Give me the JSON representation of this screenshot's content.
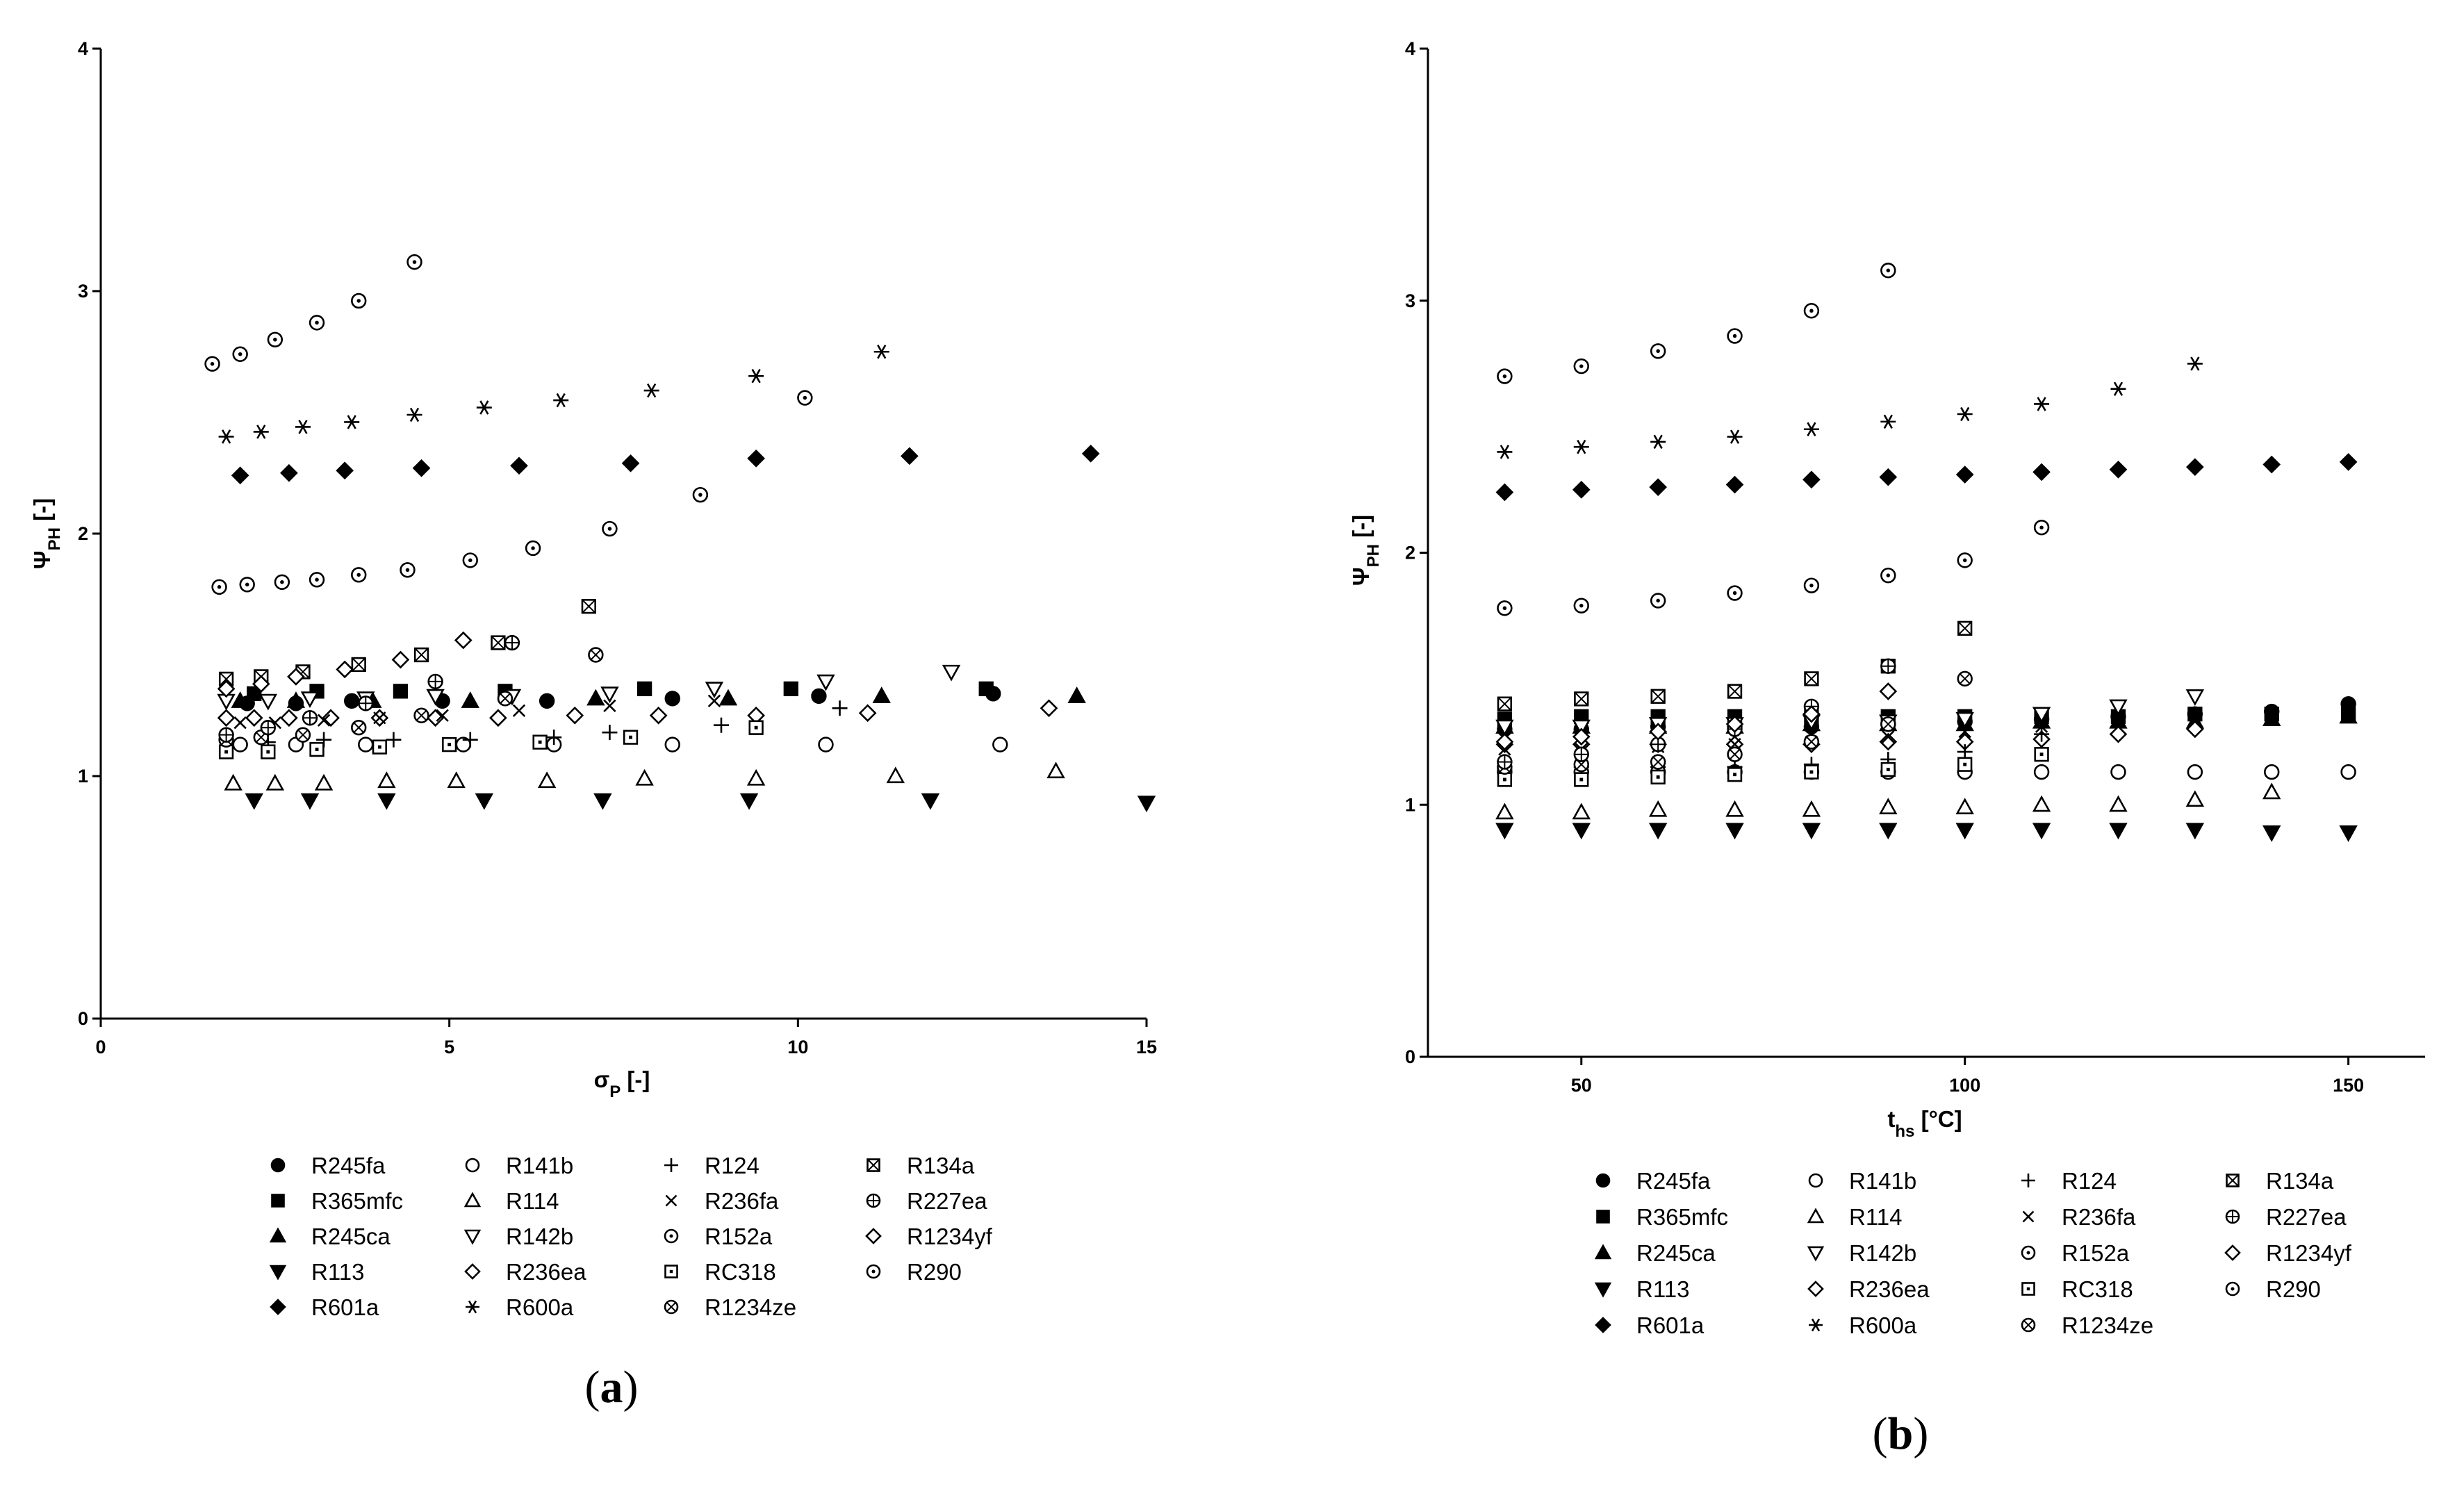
{
  "chart_data": [
    {
      "type": "scatter",
      "panel_label": "(a)",
      "xlabel": "σ_P [-]",
      "ylabel": "Ψ_PH [-]",
      "xlim": [
        0,
        15
      ],
      "ylim": [
        0,
        4
      ],
      "xticks": [
        0,
        5,
        10,
        15
      ],
      "yticks": [
        0,
        1,
        2,
        3,
        4
      ],
      "legend": "below",
      "series": [
        {
          "name": "R245fa",
          "marker": "circle-filled",
          "x": [
            2.1,
            2.8,
            3.6,
            4.9,
            6.4,
            8.2,
            10.3,
            12.8
          ],
          "y": [
            1.3,
            1.3,
            1.31,
            1.31,
            1.31,
            1.32,
            1.33,
            1.34
          ]
        },
        {
          "name": "R365mfc",
          "marker": "square-filled",
          "x": [
            2.2,
            3.1,
            4.3,
            5.8,
            7.8,
            9.9,
            12.7
          ],
          "y": [
            1.34,
            1.35,
            1.35,
            1.35,
            1.36,
            1.36,
            1.36
          ]
        },
        {
          "name": "R245ca",
          "marker": "triangle-filled",
          "x": [
            2.0,
            2.8,
            3.9,
            5.3,
            7.1,
            9.0,
            11.2,
            14.0
          ],
          "y": [
            1.31,
            1.31,
            1.31,
            1.31,
            1.32,
            1.32,
            1.33,
            1.33
          ]
        },
        {
          "name": "R113",
          "marker": "triangle-down-filled",
          "x": [
            2.2,
            3,
            4.1,
            5.5,
            7.2,
            9.3,
            11.9,
            15.0
          ],
          "y": [
            0.9,
            0.9,
            0.9,
            0.9,
            0.9,
            0.9,
            0.9,
            0.89
          ]
        },
        {
          "name": "R601a",
          "marker": "diamond-filled",
          "x": [
            2.0,
            2.7,
            3.5,
            4.6,
            6.0,
            7.6,
            9.4,
            11.6,
            14.2
          ],
          "y": [
            2.24,
            2.25,
            2.26,
            2.27,
            2.28,
            2.29,
            2.31,
            2.32,
            2.33
          ]
        },
        {
          "name": "R141b",
          "marker": "circle-open",
          "x": [
            2.0,
            2.8,
            3.8,
            5.2,
            6.5,
            8.2,
            10.4,
            12.9
          ],
          "y": [
            1.13,
            1.13,
            1.13,
            1.13,
            1.13,
            1.13,
            1.13,
            1.13
          ]
        },
        {
          "name": "R114",
          "marker": "triangle-open",
          "x": [
            1.9,
            2.5,
            3.2,
            4.1,
            5.1,
            6.4,
            7.8,
            9.4,
            11.4,
            13.7
          ],
          "y": [
            0.97,
            0.97,
            0.97,
            0.98,
            0.98,
            0.98,
            0.99,
            0.99,
            1.0,
            1.02
          ]
        },
        {
          "name": "R142b",
          "marker": "triangle-down-open",
          "x": [
            1.8,
            2.4,
            3.0,
            3.8,
            4.8,
            5.9,
            7.3,
            8.8,
            10.4,
            12.2
          ],
          "y": [
            1.31,
            1.31,
            1.32,
            1.32,
            1.33,
            1.33,
            1.34,
            1.36,
            1.39,
            1.43
          ]
        },
        {
          "name": "R236ea",
          "marker": "diamond-open",
          "x": [
            1.8,
            2.2,
            2.7,
            3.3,
            4.0,
            4.8,
            5.7,
            6.8,
            8.0,
            9.4,
            11.0,
            13.6
          ],
          "y": [
            1.24,
            1.24,
            1.24,
            1.24,
            1.24,
            1.24,
            1.24,
            1.25,
            1.25,
            1.25,
            1.26,
            1.28
          ]
        },
        {
          "name": "R600a",
          "marker": "asterisk",
          "x": [
            1.8,
            2.3,
            2.9,
            3.6,
            4.5,
            5.5,
            6.6,
            7.9,
            9.4,
            11.2
          ],
          "y": [
            2.4,
            2.42,
            2.44,
            2.46,
            2.49,
            2.52,
            2.55,
            2.59,
            2.65,
            2.75
          ]
        },
        {
          "name": "R124",
          "marker": "plus",
          "x": [
            2.4,
            3.2,
            4.2,
            5.3,
            6.5,
            7.3,
            8.9,
            10.6
          ],
          "y": [
            1.14,
            1.15,
            1.15,
            1.15,
            1.16,
            1.18,
            1.21,
            1.28
          ]
        },
        {
          "name": "R236fa",
          "marker": "cross",
          "x": [
            2.0,
            2.5,
            3.2,
            4.0,
            4.9,
            6.0,
            7.3,
            8.8
          ],
          "y": [
            1.22,
            1.22,
            1.23,
            1.24,
            1.25,
            1.27,
            1.29,
            1.31
          ]
        },
        {
          "name": "R152a",
          "marker": "circle-dot",
          "x": [
            1.7,
            2.1,
            2.6,
            3.1,
            3.7,
            4.4,
            5.3,
            6.2,
            7.3,
            8.6,
            10.1
          ],
          "y": [
            1.78,
            1.79,
            1.8,
            1.81,
            1.83,
            1.85,
            1.89,
            1.94,
            2.02,
            2.16,
            2.56
          ]
        },
        {
          "name": "RC318",
          "marker": "square-dot",
          "x": [
            1.8,
            2.4,
            3.1,
            4.0,
            5.0,
            6.3,
            7.6,
            9.4
          ],
          "y": [
            1.1,
            1.1,
            1.11,
            1.12,
            1.13,
            1.14,
            1.16,
            1.2
          ]
        },
        {
          "name": "R1234ze",
          "marker": "circle-x",
          "x": [
            1.8,
            2.3,
            2.9,
            3.7,
            4.6,
            5.8,
            7.1
          ],
          "y": [
            1.15,
            1.16,
            1.17,
            1.2,
            1.25,
            1.32,
            1.5
          ]
        },
        {
          "name": "R134a",
          "marker": "square-x",
          "x": [
            1.8,
            2.3,
            2.9,
            3.7,
            4.6,
            5.7,
            7.0
          ],
          "y": [
            1.4,
            1.41,
            1.43,
            1.46,
            1.5,
            1.55,
            1.7
          ]
        },
        {
          "name": "R227ea",
          "marker": "circle-plus",
          "x": [
            1.8,
            2.4,
            3.0,
            3.8,
            4.8,
            5.9
          ],
          "y": [
            1.17,
            1.2,
            1.24,
            1.3,
            1.39,
            1.55
          ]
        },
        {
          "name": "R1234yf",
          "marker": "diamond-open",
          "x": [
            1.8,
            2.3,
            2.8,
            3.5,
            4.3,
            5.2
          ],
          "y": [
            1.36,
            1.38,
            1.41,
            1.44,
            1.48,
            1.56
          ]
        },
        {
          "name": "R290",
          "marker": "circle-dot",
          "x": [
            1.6,
            2.0,
            2.5,
            3.1,
            3.7,
            4.5
          ],
          "y": [
            2.7,
            2.74,
            2.8,
            2.87,
            2.96,
            3.12
          ]
        }
      ]
    },
    {
      "type": "scatter",
      "panel_label": "(b)",
      "xlabel": "t_hs [°C]",
      "ylabel": "Ψ_PH [-]",
      "xlim": [
        30,
        160
      ],
      "ylim": [
        0,
        4
      ],
      "xticks": [
        50,
        100,
        150
      ],
      "yticks": [
        0,
        1,
        2,
        3,
        4
      ],
      "legend": "below",
      "series": [
        {
          "name": "R245fa",
          "marker": "circle-filled",
          "x": [
            40,
            50,
            60,
            70,
            80,
            90,
            100,
            110,
            120,
            130,
            140,
            150
          ],
          "y": [
            1.3,
            1.3,
            1.31,
            1.31,
            1.31,
            1.32,
            1.33,
            1.34,
            1.35,
            1.36,
            1.37,
            1.4
          ]
        },
        {
          "name": "R365mfc",
          "marker": "square-filled",
          "x": [
            40,
            50,
            60,
            70,
            80,
            90,
            100,
            110,
            120,
            130,
            140,
            150
          ],
          "y": [
            1.34,
            1.35,
            1.35,
            1.35,
            1.35,
            1.35,
            1.35,
            1.35,
            1.35,
            1.36,
            1.36,
            1.36
          ]
        },
        {
          "name": "R245ca",
          "marker": "triangle-filled",
          "x": [
            40,
            50,
            60,
            70,
            80,
            90,
            100,
            110,
            120,
            130,
            140,
            150
          ],
          "y": [
            1.31,
            1.31,
            1.31,
            1.31,
            1.32,
            1.32,
            1.32,
            1.33,
            1.33,
            1.33,
            1.34,
            1.35
          ]
        },
        {
          "name": "R113",
          "marker": "triangle-down-filled",
          "x": [
            40,
            50,
            60,
            70,
            80,
            90,
            100,
            110,
            120,
            130,
            140,
            150
          ],
          "y": [
            0.9,
            0.9,
            0.9,
            0.9,
            0.9,
            0.9,
            0.9,
            0.9,
            0.9,
            0.9,
            0.89,
            0.89
          ]
        },
        {
          "name": "R601a",
          "marker": "diamond-filled",
          "x": [
            40,
            50,
            60,
            70,
            80,
            90,
            100,
            110,
            120,
            130,
            140,
            150
          ],
          "y": [
            2.24,
            2.25,
            2.26,
            2.27,
            2.29,
            2.3,
            2.31,
            2.32,
            2.33,
            2.34,
            2.35,
            2.36
          ]
        },
        {
          "name": "R141b",
          "marker": "circle-open",
          "x": [
            40,
            50,
            60,
            70,
            80,
            90,
            100,
            110,
            120,
            130,
            140,
            150
          ],
          "y": [
            1.13,
            1.13,
            1.13,
            1.13,
            1.13,
            1.13,
            1.13,
            1.13,
            1.13,
            1.13,
            1.13,
            1.13
          ]
        },
        {
          "name": "R114",
          "marker": "triangle-open",
          "x": [
            40,
            50,
            60,
            70,
            80,
            90,
            100,
            110,
            120,
            130,
            140
          ],
          "y": [
            0.97,
            0.97,
            0.98,
            0.98,
            0.98,
            0.99,
            0.99,
            1.0,
            1.0,
            1.02,
            1.05
          ]
        },
        {
          "name": "R142b",
          "marker": "triangle-down-open",
          "x": [
            40,
            50,
            60,
            70,
            80,
            90,
            100,
            110,
            120,
            130
          ],
          "y": [
            1.31,
            1.31,
            1.32,
            1.32,
            1.33,
            1.33,
            1.34,
            1.36,
            1.39,
            1.43
          ]
        },
        {
          "name": "R236ea",
          "marker": "diamond-open",
          "x": [
            40,
            50,
            60,
            70,
            80,
            90,
            100,
            110,
            120,
            130
          ],
          "y": [
            1.24,
            1.24,
            1.24,
            1.24,
            1.24,
            1.25,
            1.25,
            1.26,
            1.28,
            1.3
          ]
        },
        {
          "name": "R600a",
          "marker": "asterisk",
          "x": [
            40,
            50,
            60,
            70,
            80,
            90,
            100,
            110,
            120,
            130
          ],
          "y": [
            2.4,
            2.42,
            2.44,
            2.46,
            2.49,
            2.52,
            2.55,
            2.59,
            2.65,
            2.75
          ]
        },
        {
          "name": "R124",
          "marker": "plus",
          "x": [
            40,
            50,
            60,
            70,
            80,
            90,
            100,
            110
          ],
          "y": [
            1.14,
            1.15,
            1.15,
            1.15,
            1.16,
            1.18,
            1.21,
            1.28
          ]
        },
        {
          "name": "R236fa",
          "marker": "cross",
          "x": [
            40,
            50,
            60,
            70,
            80,
            90,
            100,
            110
          ],
          "y": [
            1.22,
            1.22,
            1.23,
            1.24,
            1.25,
            1.27,
            1.29,
            1.31
          ]
        },
        {
          "name": "R152a",
          "marker": "circle-dot",
          "x": [
            40,
            50,
            60,
            70,
            80,
            90,
            100,
            110
          ],
          "y": [
            1.78,
            1.79,
            1.81,
            1.84,
            1.87,
            1.91,
            1.97,
            2.1
          ]
        },
        {
          "name": "RC318",
          "marker": "square-dot",
          "x": [
            40,
            50,
            60,
            70,
            80,
            90,
            100,
            110
          ],
          "y": [
            1.1,
            1.1,
            1.11,
            1.12,
            1.13,
            1.14,
            1.16,
            1.2
          ]
        },
        {
          "name": "R1234ze",
          "marker": "circle-x",
          "x": [
            40,
            50,
            60,
            70,
            80,
            90,
            100
          ],
          "y": [
            1.15,
            1.16,
            1.17,
            1.2,
            1.25,
            1.32,
            1.5
          ]
        },
        {
          "name": "R134a",
          "marker": "square-x",
          "x": [
            40,
            50,
            60,
            70,
            80,
            90,
            100
          ],
          "y": [
            1.4,
            1.42,
            1.43,
            1.45,
            1.5,
            1.55,
            1.7
          ]
        },
        {
          "name": "R227ea",
          "marker": "circle-plus",
          "x": [
            40,
            50,
            60,
            70,
            80,
            90
          ],
          "y": [
            1.17,
            1.2,
            1.24,
            1.3,
            1.39,
            1.55
          ]
        },
        {
          "name": "R1234yf",
          "marker": "diamond-open",
          "x": [
            40,
            50,
            60,
            70,
            80,
            90
          ],
          "y": [
            1.25,
            1.27,
            1.29,
            1.32,
            1.36,
            1.45
          ]
        },
        {
          "name": "R290",
          "marker": "circle-dot",
          "x": [
            40,
            50,
            60,
            70,
            80,
            90
          ],
          "y": [
            2.7,
            2.74,
            2.8,
            2.86,
            2.96,
            3.12
          ]
        }
      ]
    }
  ],
  "legend_markers": {
    "R245fa": "circle-filled",
    "R365mfc": "square-filled",
    "R245ca": "triangle-filled",
    "R113": "triangle-down-filled",
    "R601a": "diamond-filled",
    "R141b": "circle-open",
    "R114": "triangle-open",
    "R142b": "triangle-down-open",
    "R236ea": "diamond-open",
    "R600a": "asterisk",
    "R124": "plus",
    "R236fa": "cross",
    "R152a": "circle-dot",
    "RC318": "square-dot",
    "R1234ze": "circle-x",
    "R134a": "square-x",
    "R227ea": "circle-plus",
    "R1234yf": "diamond-open",
    "R290": "circle-dot"
  },
  "legend_columns": [
    [
      "R245fa",
      "R365mfc",
      "R245ca",
      "R113",
      "R601a"
    ],
    [
      "R141b",
      "R114",
      "R142b",
      "R236ea",
      "R600a"
    ],
    [
      "R124",
      "R236fa",
      "R152a",
      "RC318",
      "R1234ze"
    ],
    [
      "R134a",
      "R227ea",
      "R1234yf",
      "R290"
    ]
  ]
}
